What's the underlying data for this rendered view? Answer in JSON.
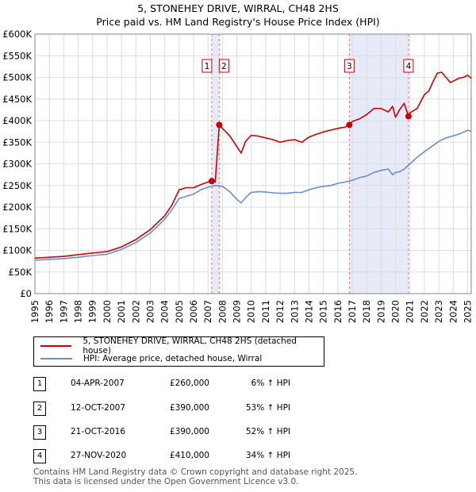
{
  "chart_data": {
    "type": "line",
    "title": "5, STONEHEY DRIVE, WIRRAL, CH48 2HS",
    "subtitle": "Price paid vs. HM Land Registry's House Price Index (HPI)",
    "xlim": [
      1995,
      2025.25
    ],
    "ylim": [
      0,
      600000
    ],
    "x_ticks": [
      1995,
      1996,
      1997,
      1998,
      1999,
      2000,
      2001,
      2002,
      2003,
      2004,
      2005,
      2006,
      2007,
      2008,
      2009,
      2010,
      2011,
      2012,
      2013,
      2014,
      2015,
      2016,
      2017,
      2018,
      2019,
      2020,
      2021,
      2022,
      2023,
      2024,
      2025
    ],
    "y_ticks": [
      {
        "value": 0,
        "label": "£0"
      },
      {
        "value": 50000,
        "label": "£50K"
      },
      {
        "value": 100000,
        "label": "£100K"
      },
      {
        "value": 150000,
        "label": "£150K"
      },
      {
        "value": 200000,
        "label": "£200K"
      },
      {
        "value": 250000,
        "label": "£250K"
      },
      {
        "value": 300000,
        "label": "£300K"
      },
      {
        "value": 350000,
        "label": "£350K"
      },
      {
        "value": 400000,
        "label": "£400K"
      },
      {
        "value": 450000,
        "label": "£450K"
      },
      {
        "value": 500000,
        "label": "£500K"
      },
      {
        "value": 550000,
        "label": "£550K"
      },
      {
        "value": 600000,
        "label": "£600K"
      }
    ],
    "grid": true,
    "shaded_spans": [
      {
        "from": 2007.26,
        "to": 2007.78
      },
      {
        "from": 2016.8,
        "to": 2020.9
      }
    ],
    "series": [
      {
        "name": "5, STONEHEY DRIVE, WIRRAL, CH48 2HS (detached house)",
        "color": "#cc0000",
        "x": [
          1995,
          1996,
          1997,
          1998,
          1999,
          2000,
          2001,
          2002,
          2003,
          2004,
          2004.5,
          2005,
          2005.5,
          2006,
          2006.5,
          2007,
          2007.26,
          2007.5,
          2007.78,
          2008,
          2008.5,
          2009,
          2009.3,
          2009.6,
          2010,
          2010.5,
          2011,
          2011.5,
          2012,
          2012.5,
          2013,
          2013.5,
          2014,
          2014.5,
          2015,
          2015.5,
          2016,
          2016.5,
          2016.8,
          2017,
          2017.5,
          2018,
          2018.5,
          2019,
          2019.5,
          2019.8,
          2020,
          2020.3,
          2020.6,
          2020.9,
          2021,
          2021.5,
          2022,
          2022.3,
          2022.6,
          2022.9,
          2023.2,
          2023.5,
          2023.8,
          2024.1,
          2024.4,
          2024.7,
          2025,
          2025.25
        ],
        "y": [
          82000,
          84000,
          86000,
          90000,
          94000,
          97000,
          108000,
          125000,
          148000,
          180000,
          205000,
          240000,
          245000,
          245000,
          252000,
          258000,
          260000,
          258000,
          390000,
          382000,
          365000,
          340000,
          325000,
          352000,
          366000,
          364000,
          360000,
          356000,
          350000,
          354000,
          356000,
          350000,
          362000,
          368000,
          374000,
          378000,
          382000,
          385000,
          390000,
          398000,
          404000,
          414000,
          428000,
          428000,
          420000,
          433000,
          408000,
          426000,
          440000,
          410000,
          418000,
          428000,
          460000,
          468000,
          490000,
          510000,
          512000,
          500000,
          488000,
          493000,
          498000,
          500000,
          505000,
          498000
        ]
      },
      {
        "name": "HPI: Average price, detached house, Wirral",
        "color": "#6a8fcc",
        "x": [
          1995,
          1996,
          1997,
          1998,
          1999,
          2000,
          2001,
          2002,
          2003,
          2004,
          2004.5,
          2005,
          2005.5,
          2006,
          2006.5,
          2007,
          2007.5,
          2008,
          2008.5,
          2009,
          2009.3,
          2009.6,
          2010,
          2010.5,
          2011,
          2011.5,
          2012,
          2012.5,
          2013,
          2013.5,
          2014,
          2014.5,
          2015,
          2015.5,
          2016,
          2016.5,
          2017,
          2017.5,
          2018,
          2018.5,
          2019,
          2019.5,
          2019.8,
          2020,
          2020.3,
          2020.6,
          2021,
          2021.5,
          2022,
          2022.5,
          2023,
          2023.5,
          2024,
          2024.5,
          2025,
          2025.25
        ],
        "y": [
          77000,
          79000,
          81000,
          84000,
          88000,
          91000,
          102000,
          118000,
          140000,
          172000,
          194000,
          220000,
          225000,
          230000,
          240000,
          246000,
          250000,
          248000,
          236000,
          218000,
          210000,
          222000,
          234000,
          236000,
          235000,
          233000,
          232000,
          232000,
          234000,
          234000,
          240000,
          245000,
          248000,
          250000,
          255000,
          258000,
          262000,
          268000,
          272000,
          280000,
          285000,
          288000,
          275000,
          280000,
          282000,
          288000,
          300000,
          315000,
          328000,
          340000,
          352000,
          360000,
          365000,
          370000,
          378000,
          375000
        ]
      }
    ],
    "markers": [
      {
        "label": "1",
        "x": 2007.26,
        "y": 260000
      },
      {
        "label": "2",
        "x": 2007.78,
        "y": 390000
      },
      {
        "label": "3",
        "x": 2016.8,
        "y": 390000
      },
      {
        "label": "4",
        "x": 2020.9,
        "y": 410000
      }
    ]
  },
  "legend": {
    "property_label": "5, STONEHEY DRIVE, WIRRAL, CH48 2HS (detached house)",
    "hpi_label": "HPI: Average price, detached house, Wirral"
  },
  "sales": [
    {
      "num": "1",
      "date": "04-APR-2007",
      "price": "£260,000",
      "hpi": "6% ↑ HPI"
    },
    {
      "num": "2",
      "date": "12-OCT-2007",
      "price": "£390,000",
      "hpi": "53% ↑ HPI"
    },
    {
      "num": "3",
      "date": "21-OCT-2016",
      "price": "£390,000",
      "hpi": "52% ↑ HPI"
    },
    {
      "num": "4",
      "date": "27-NOV-2020",
      "price": "£410,000",
      "hpi": "34% ↑ HPI"
    }
  ],
  "footer": {
    "line1": "Contains HM Land Registry data © Crown copyright and database right 2025.",
    "line2": "This data is licensed under the Open Government Licence v3.0."
  }
}
